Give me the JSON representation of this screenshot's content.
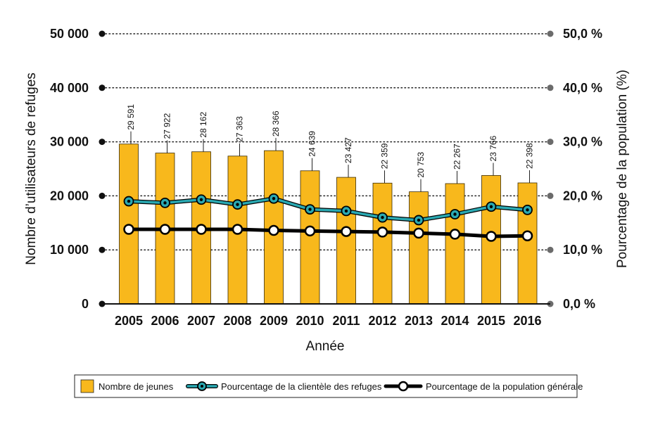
{
  "chart_data": {
    "type": "bar",
    "title": "",
    "xlabel": "Année",
    "ylabel": "Nombre d’utilisateurs de refuges",
    "y2label": "Pourcentage de la population (%)",
    "categories": [
      "2005",
      "2006",
      "2007",
      "2008",
      "2009",
      "2010",
      "2011",
      "2012",
      "2013",
      "2014",
      "2015",
      "2016"
    ],
    "ylim": [
      0,
      50000
    ],
    "y2lim": [
      0,
      50
    ],
    "y_ticks": [
      {
        "value": 0,
        "label": "0"
      },
      {
        "value": 10000,
        "label": "10 000"
      },
      {
        "value": 20000,
        "label": "20 000"
      },
      {
        "value": 30000,
        "label": "30 000"
      },
      {
        "value": 40000,
        "label": "40 000"
      },
      {
        "value": 50000,
        "label": "50 000"
      }
    ],
    "y2_ticks": [
      {
        "value": 0,
        "label": "0,0 %"
      },
      {
        "value": 10,
        "label": "10,0 %"
      },
      {
        "value": 20,
        "label": "20,0 %"
      },
      {
        "value": 30,
        "label": "30,0 %"
      },
      {
        "value": 40,
        "label": "40,0 %"
      },
      {
        "value": 50,
        "label": "50,0 %"
      }
    ],
    "grid": true,
    "series": [
      {
        "name": "Nombre de jeunes",
        "kind": "bar",
        "axis": "left",
        "color": "#f8b81c",
        "values": [
          29591,
          27922,
          28162,
          27363,
          28366,
          24639,
          23427,
          22359,
          20753,
          22267,
          23766,
          22398
        ],
        "labels": [
          "29 591",
          "27 922",
          "28 162",
          "27 363",
          "28 366",
          "24 639",
          "23 427",
          "22 359",
          "20 753",
          "22 267",
          "23 766",
          "22 398"
        ]
      },
      {
        "name": "Pourcentage de la clientèle des refuges",
        "kind": "line",
        "axis": "right",
        "color": "#2aa9b2",
        "values": [
          19.0,
          18.7,
          19.3,
          18.4,
          19.5,
          17.5,
          17.2,
          16.0,
          15.5,
          16.6,
          18.0,
          17.4
        ]
      },
      {
        "name": "Pourcentage de la population générale",
        "kind": "line",
        "axis": "right",
        "color": "#000000",
        "values": [
          13.8,
          13.8,
          13.8,
          13.8,
          13.6,
          13.5,
          13.4,
          13.3,
          13.1,
          12.9,
          12.5,
          12.6
        ]
      }
    ],
    "legend_position": "bottom-center"
  }
}
